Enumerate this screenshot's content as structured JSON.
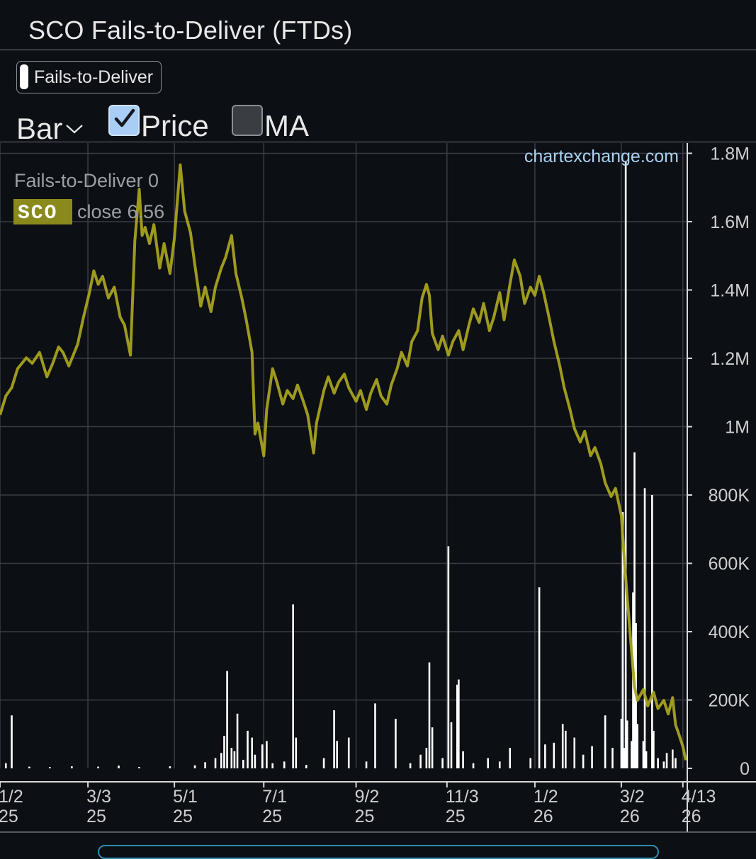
{
  "title": "SCO Fails-to-Deliver (FTDs)",
  "series_toggle": {
    "label": "Fails-to-Deliver",
    "swatch_color": "#ffffff"
  },
  "controls": {
    "chart_type_label": "Bar",
    "price": {
      "label": "Price",
      "checked": true
    },
    "ma": {
      "label": "MA",
      "checked": false
    }
  },
  "watermark": "chartexchange.com",
  "legend": {
    "ftd_text": "Fails-to-Deliver 0",
    "ticker": "SCO",
    "price_text": "close 6.56",
    "ticker_bg": "#8a8a1c"
  },
  "colors": {
    "price_line": "#a7a21f",
    "ftd_bars": "#ffffff",
    "grid": "#3a3e44",
    "accent_link": "#a9d2f2"
  },
  "chart_data": {
    "type": "bar",
    "y_right": {
      "ticks": [
        "0",
        "200K",
        "400K",
        "600K",
        "800K",
        "1M",
        "1.2M",
        "1.4M",
        "1.6M",
        "1.8M"
      ],
      "tick_values": [
        0,
        200000,
        400000,
        600000,
        800000,
        1000000,
        1200000,
        1400000,
        1600000,
        1800000
      ],
      "ylim": [
        0,
        1830000
      ]
    },
    "x_ticks": [
      {
        "line1": "1/2",
        "line2": "25"
      },
      {
        "line1": "3/3",
        "line2": "25"
      },
      {
        "line1": "5/1",
        "line2": "25"
      },
      {
        "line1": "7/1",
        "line2": "25"
      },
      {
        "line1": "9/2",
        "line2": "25"
      },
      {
        "line1": "11/3",
        "line2": "25"
      },
      {
        "line1": "1/2",
        "line2": "26"
      },
      {
        "line1": "3/2",
        "line2": "26"
      },
      {
        "line1": "4/13",
        "line2": "26"
      }
    ],
    "x_tick_dates": [
      "2025-01-02",
      "2025-03-03",
      "2025-05-01",
      "2025-07-01",
      "2025-09-02",
      "2025-11-03",
      "2026-01-02",
      "2026-03-02",
      "2026-04-13"
    ],
    "x_range": [
      "2025-01-02",
      "2026-04-16"
    ],
    "series": [
      {
        "name": "Fails-to-Deliver",
        "kind": "bar",
        "points": [
          [
            "2025-01-06",
            15000
          ],
          [
            "2025-01-10",
            155000
          ],
          [
            "2025-01-22",
            5000
          ],
          [
            "2025-02-05",
            4000
          ],
          [
            "2025-02-20",
            6000
          ],
          [
            "2025-03-10",
            5000
          ],
          [
            "2025-03-24",
            8000
          ],
          [
            "2025-04-07",
            4000
          ],
          [
            "2025-04-28",
            6000
          ],
          [
            "2025-05-15",
            9000
          ],
          [
            "2025-05-22",
            18000
          ],
          [
            "2025-05-29",
            30000
          ],
          [
            "2025-06-02",
            45000
          ],
          [
            "2025-06-04",
            95000
          ],
          [
            "2025-06-06",
            285000
          ],
          [
            "2025-06-09",
            60000
          ],
          [
            "2025-06-11",
            50000
          ],
          [
            "2025-06-13",
            160000
          ],
          [
            "2025-06-17",
            25000
          ],
          [
            "2025-06-20",
            110000
          ],
          [
            "2025-06-23",
            90000
          ],
          [
            "2025-06-25",
            40000
          ],
          [
            "2025-06-30",
            70000
          ],
          [
            "2025-07-03",
            80000
          ],
          [
            "2025-07-07",
            15000
          ],
          [
            "2025-07-15",
            20000
          ],
          [
            "2025-07-21",
            480000
          ],
          [
            "2025-07-23",
            90000
          ],
          [
            "2025-07-30",
            10000
          ],
          [
            "2025-08-11",
            30000
          ],
          [
            "2025-08-18",
            170000
          ],
          [
            "2025-08-20",
            80000
          ],
          [
            "2025-08-28",
            90000
          ],
          [
            "2025-09-09",
            20000
          ],
          [
            "2025-09-15",
            190000
          ],
          [
            "2025-09-29",
            145000
          ],
          [
            "2025-10-09",
            15000
          ],
          [
            "2025-10-16",
            40000
          ],
          [
            "2025-10-20",
            60000
          ],
          [
            "2025-10-22",
            310000
          ],
          [
            "2025-10-24",
            120000
          ],
          [
            "2025-10-31",
            30000
          ],
          [
            "2025-11-04",
            650000
          ],
          [
            "2025-11-06",
            135000
          ],
          [
            "2025-11-10",
            245000
          ],
          [
            "2025-11-11",
            260000
          ],
          [
            "2025-11-14",
            50000
          ],
          [
            "2025-11-21",
            15000
          ],
          [
            "2025-12-01",
            30000
          ],
          [
            "2025-12-09",
            20000
          ],
          [
            "2025-12-16",
            60000
          ],
          [
            "2025-12-30",
            30000
          ],
          [
            "2026-01-05",
            530000
          ],
          [
            "2026-01-09",
            70000
          ],
          [
            "2026-01-15",
            75000
          ],
          [
            "2026-01-21",
            130000
          ],
          [
            "2026-01-23",
            110000
          ],
          [
            "2026-01-29",
            90000
          ],
          [
            "2026-02-04",
            40000
          ],
          [
            "2026-02-10",
            65000
          ],
          [
            "2026-02-19",
            155000
          ],
          [
            "2026-02-24",
            60000
          ],
          [
            "2026-03-02",
            145000
          ],
          [
            "2026-03-03",
            750000
          ],
          [
            "2026-03-04",
            60000
          ],
          [
            "2026-03-05",
            1775000
          ],
          [
            "2026-03-06",
            140000
          ],
          [
            "2026-03-09",
            80000
          ],
          [
            "2026-03-10",
            515000
          ],
          [
            "2026-03-11",
            925000
          ],
          [
            "2026-03-12",
            425000
          ],
          [
            "2026-03-13",
            130000
          ],
          [
            "2026-03-17",
            80000
          ],
          [
            "2026-03-18",
            820000
          ],
          [
            "2026-03-19",
            50000
          ],
          [
            "2026-03-23",
            800000
          ],
          [
            "2026-03-24",
            110000
          ],
          [
            "2026-03-27",
            30000
          ],
          [
            "2026-03-31",
            20000
          ],
          [
            "2026-04-02",
            45000
          ],
          [
            "2026-04-06",
            55000
          ],
          [
            "2026-04-08",
            30000
          ]
        ]
      },
      {
        "name": "SCO",
        "kind": "line",
        "points": [
          [
            "2025-01-02",
            9.2
          ],
          [
            "2025-01-06",
            9.55
          ],
          [
            "2025-01-10",
            9.7
          ],
          [
            "2025-01-14",
            10.05
          ],
          [
            "2025-01-20",
            10.25
          ],
          [
            "2025-01-24",
            10.15
          ],
          [
            "2025-01-29",
            10.35
          ],
          [
            "2025-02-03",
            9.9
          ],
          [
            "2025-02-07",
            10.15
          ],
          [
            "2025-02-11",
            10.45
          ],
          [
            "2025-02-14",
            10.35
          ],
          [
            "2025-02-18",
            10.1
          ],
          [
            "2025-02-24",
            10.5
          ],
          [
            "2025-02-28",
            11.0
          ],
          [
            "2025-03-04",
            11.45
          ],
          [
            "2025-03-07",
            11.85
          ],
          [
            "2025-03-10",
            11.6
          ],
          [
            "2025-03-13",
            11.75
          ],
          [
            "2025-03-17",
            11.35
          ],
          [
            "2025-03-21",
            11.55
          ],
          [
            "2025-03-25",
            11.0
          ],
          [
            "2025-03-28",
            10.85
          ],
          [
            "2025-04-01",
            10.3
          ],
          [
            "2025-04-04",
            12.4
          ],
          [
            "2025-04-07",
            13.35
          ],
          [
            "2025-04-09",
            12.5
          ],
          [
            "2025-04-11",
            12.65
          ],
          [
            "2025-04-14",
            12.35
          ],
          [
            "2025-04-17",
            12.7
          ],
          [
            "2025-04-21",
            11.9
          ],
          [
            "2025-04-24",
            12.35
          ],
          [
            "2025-04-28",
            11.8
          ],
          [
            "2025-05-01",
            12.45
          ],
          [
            "2025-05-05",
            13.8
          ],
          [
            "2025-05-08",
            12.95
          ],
          [
            "2025-05-12",
            12.55
          ],
          [
            "2025-05-15",
            11.95
          ],
          [
            "2025-05-19",
            11.2
          ],
          [
            "2025-05-22",
            11.55
          ],
          [
            "2025-05-26",
            11.1
          ],
          [
            "2025-05-29",
            11.55
          ],
          [
            "2025-06-02",
            11.9
          ],
          [
            "2025-06-05",
            12.1
          ],
          [
            "2025-06-09",
            12.5
          ],
          [
            "2025-06-12",
            11.8
          ],
          [
            "2025-06-16",
            11.35
          ],
          [
            "2025-06-19",
            10.95
          ],
          [
            "2025-06-23",
            10.35
          ],
          [
            "2025-06-25",
            8.85
          ],
          [
            "2025-06-27",
            9.05
          ],
          [
            "2025-07-01",
            8.45
          ],
          [
            "2025-07-03",
            9.3
          ],
          [
            "2025-07-07",
            10.05
          ],
          [
            "2025-07-10",
            9.8
          ],
          [
            "2025-07-14",
            9.4
          ],
          [
            "2025-07-17",
            9.65
          ],
          [
            "2025-07-21",
            9.5
          ],
          [
            "2025-07-24",
            9.75
          ],
          [
            "2025-07-28",
            9.45
          ],
          [
            "2025-07-31",
            9.2
          ],
          [
            "2025-08-04",
            8.5
          ],
          [
            "2025-08-06",
            9.05
          ],
          [
            "2025-08-11",
            9.65
          ],
          [
            "2025-08-14",
            9.9
          ],
          [
            "2025-08-18",
            9.6
          ],
          [
            "2025-08-21",
            9.8
          ],
          [
            "2025-08-25",
            9.95
          ],
          [
            "2025-08-28",
            9.7
          ],
          [
            "2025-09-02",
            9.45
          ],
          [
            "2025-09-05",
            9.65
          ],
          [
            "2025-09-09",
            9.3
          ],
          [
            "2025-09-12",
            9.6
          ],
          [
            "2025-09-16",
            9.85
          ],
          [
            "2025-09-19",
            9.55
          ],
          [
            "2025-09-23",
            9.4
          ],
          [
            "2025-09-26",
            9.75
          ],
          [
            "2025-09-30",
            10.05
          ],
          [
            "2025-10-03",
            10.35
          ],
          [
            "2025-10-07",
            10.1
          ],
          [
            "2025-10-10",
            10.55
          ],
          [
            "2025-10-14",
            10.75
          ],
          [
            "2025-10-17",
            11.35
          ],
          [
            "2025-10-20",
            11.6
          ],
          [
            "2025-10-22",
            11.4
          ],
          [
            "2025-10-24",
            10.7
          ],
          [
            "2025-10-28",
            10.4
          ],
          [
            "2025-10-31",
            10.65
          ],
          [
            "2025-11-04",
            10.3
          ],
          [
            "2025-11-07",
            10.55
          ],
          [
            "2025-11-11",
            10.75
          ],
          [
            "2025-11-14",
            10.4
          ],
          [
            "2025-11-18",
            10.85
          ],
          [
            "2025-11-21",
            11.15
          ],
          [
            "2025-11-25",
            10.9
          ],
          [
            "2025-11-28",
            11.25
          ],
          [
            "2025-12-02",
            10.75
          ],
          [
            "2025-12-05",
            11.0
          ],
          [
            "2025-12-09",
            11.45
          ],
          [
            "2025-12-12",
            10.95
          ],
          [
            "2025-12-16",
            11.6
          ],
          [
            "2025-12-19",
            12.05
          ],
          [
            "2025-12-23",
            11.75
          ],
          [
            "2025-12-26",
            11.25
          ],
          [
            "2025-12-30",
            11.55
          ],
          [
            "2026-01-02",
            11.4
          ],
          [
            "2026-01-05",
            11.75
          ],
          [
            "2026-01-08",
            11.45
          ],
          [
            "2026-01-12",
            10.95
          ],
          [
            "2026-01-15",
            10.55
          ],
          [
            "2026-01-19",
            10.1
          ],
          [
            "2026-01-22",
            9.7
          ],
          [
            "2026-01-26",
            9.3
          ],
          [
            "2026-01-29",
            8.95
          ],
          [
            "2026-02-02",
            8.7
          ],
          [
            "2026-02-05",
            8.9
          ],
          [
            "2026-02-09",
            8.45
          ],
          [
            "2026-02-12",
            8.6
          ],
          [
            "2026-02-16",
            8.3
          ],
          [
            "2026-02-19",
            7.95
          ],
          [
            "2026-02-23",
            7.7
          ],
          [
            "2026-02-26",
            7.85
          ],
          [
            "2026-03-02",
            7.35
          ],
          [
            "2026-03-04",
            6.55
          ],
          [
            "2026-03-06",
            5.85
          ],
          [
            "2026-03-09",
            4.85
          ],
          [
            "2026-03-11",
            4.2
          ],
          [
            "2026-03-13",
            3.95
          ],
          [
            "2026-03-17",
            4.15
          ],
          [
            "2026-03-20",
            3.85
          ],
          [
            "2026-03-24",
            4.1
          ],
          [
            "2026-03-27",
            3.8
          ],
          [
            "2026-03-31",
            3.95
          ],
          [
            "2026-04-03",
            3.7
          ],
          [
            "2026-04-06",
            4.0
          ],
          [
            "2026-04-08",
            3.5
          ],
          [
            "2026-04-10",
            3.35
          ],
          [
            "2026-04-13",
            3.1
          ],
          [
            "2026-04-15",
            2.85
          ]
        ]
      }
    ]
  }
}
